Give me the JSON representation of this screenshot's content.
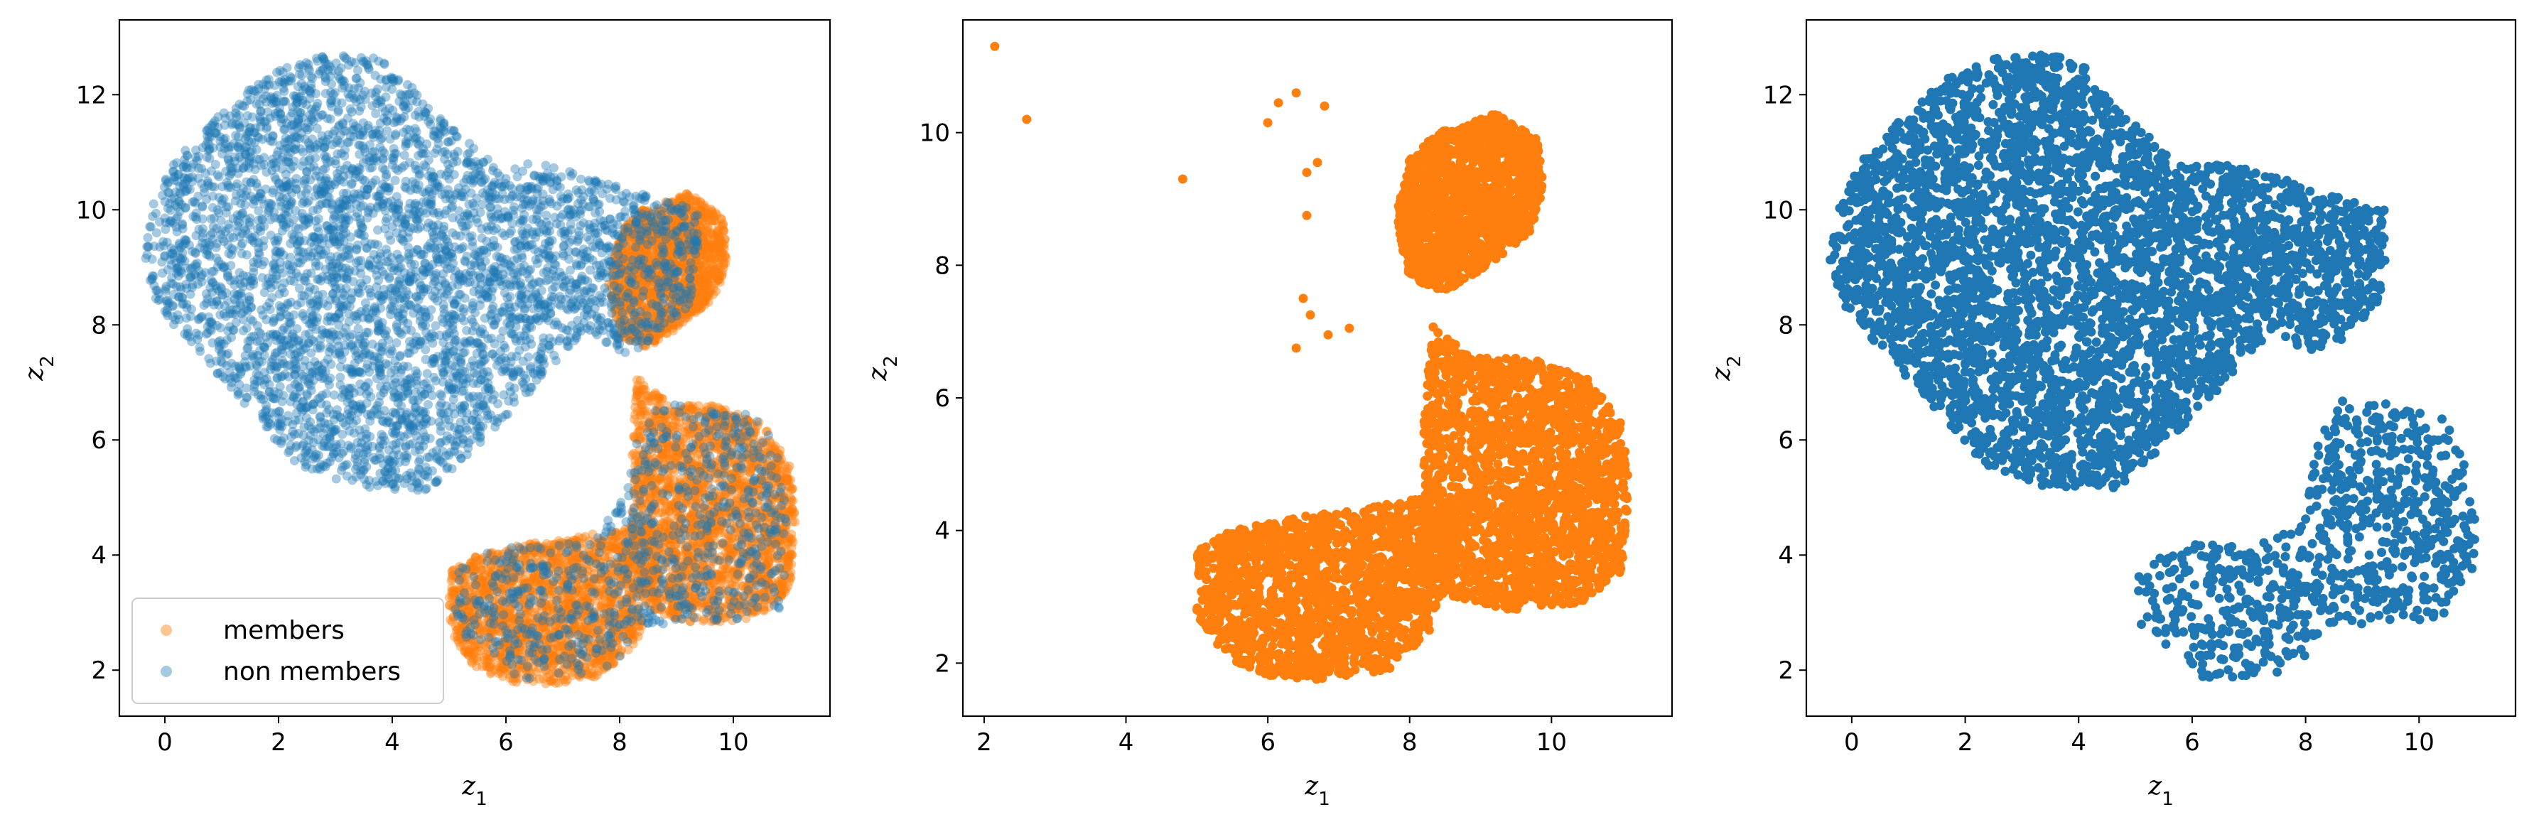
{
  "colors": {
    "members": "#ff7f0e",
    "non_members": "#1f77b4",
    "axes": "#000000",
    "background": "#ffffff"
  },
  "chart_data": [
    {
      "type": "scatter",
      "title": "",
      "xlabel": "z",
      "xlabel_sub": "1",
      "ylabel": "z",
      "ylabel_sub": "2",
      "xlim": [
        -0.8,
        11.7
      ],
      "ylim": [
        1.2,
        13.3
      ],
      "xticks": [
        0,
        2,
        4,
        6,
        8,
        10
      ],
      "yticks": [
        2,
        4,
        6,
        8,
        10,
        12
      ],
      "grid": false,
      "legend": {
        "placement": "lower-left",
        "entries": [
          "members",
          "non members"
        ]
      },
      "series": [
        {
          "name": "members",
          "color": "#ff7f0e",
          "alpha": 0.45,
          "clusters": [
            "A",
            "B",
            "C"
          ],
          "blobs": []
        },
        {
          "name": "non members",
          "color": "#1f77b4",
          "alpha": 0.4,
          "clusters": [
            "U",
            "L"
          ],
          "blobs": []
        }
      ]
    },
    {
      "type": "scatter",
      "title": "",
      "xlabel": "z",
      "xlabel_sub": "1",
      "ylabel": "z",
      "ylabel_sub": "2",
      "xlim": [
        1.7,
        11.7
      ],
      "ylim": [
        1.2,
        11.7
      ],
      "xticks": [
        2,
        4,
        6,
        8,
        10
      ],
      "yticks": [
        2,
        4,
        6,
        8,
        10
      ],
      "grid": false,
      "series": [
        {
          "color": "#ff7f0e",
          "alpha": 1.0,
          "clusters": [
            "A",
            "B",
            "C"
          ],
          "blobs": [],
          "extra_points": [
            [
              2.15,
              11.3
            ],
            [
              2.6,
              10.2
            ],
            [
              4.8,
              9.3
            ],
            [
              6.0,
              10.15
            ],
            [
              6.4,
              10.6
            ],
            [
              6.15,
              10.45
            ],
            [
              6.55,
              8.75
            ],
            [
              6.7,
              9.55
            ],
            [
              6.5,
              7.5
            ],
            [
              6.4,
              6.75
            ],
            [
              6.85,
              6.95
            ],
            [
              6.8,
              10.4
            ],
            [
              7.15,
              7.05
            ],
            [
              6.6,
              7.25
            ],
            [
              6.55,
              9.4
            ]
          ]
        }
      ]
    },
    {
      "type": "scatter",
      "title": "",
      "xlabel": "z",
      "xlabel_sub": "1",
      "ylabel": "z",
      "ylabel_sub": "2",
      "xlim": [
        -0.8,
        11.7
      ],
      "ylim": [
        1.2,
        13.3
      ],
      "xticks": [
        0,
        2,
        4,
        6,
        8,
        10
      ],
      "yticks": [
        2,
        4,
        6,
        8,
        10,
        12
      ],
      "grid": false,
      "series": [
        {
          "color": "#1f77b4",
          "alpha": 1.0,
          "clusters": [
            "U",
            "L"
          ],
          "blobs": []
        }
      ]
    }
  ]
}
